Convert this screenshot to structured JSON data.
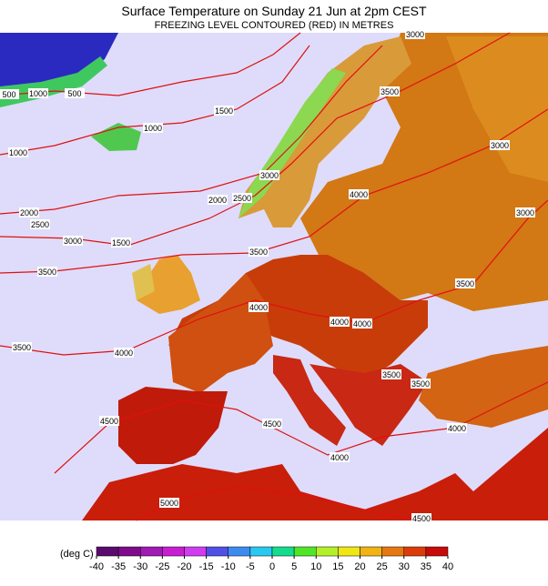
{
  "header": {
    "title": "Surface Temperature on Sunday 21 Jun at 2pm CEST",
    "subtitle": "FREEZING LEVEL CONTOURED (RED) IN METRES"
  },
  "contour_labels": [
    "500",
    "1000",
    "500",
    "1500",
    "1000",
    "1000",
    "2000",
    "2500",
    "3000",
    "1500",
    "2000",
    "2500",
    "3000",
    "3000",
    "3500",
    "3000",
    "3000",
    "4000",
    "3500",
    "3500",
    "4000",
    "4000",
    "4000",
    "3500",
    "3500",
    "4000",
    "3500",
    "3500",
    "4500",
    "4500",
    "4000",
    "4000",
    "5000",
    "4500"
  ],
  "legend": {
    "unit": "(deg C)",
    "ticks": [
      -40,
      -35,
      -30,
      -25,
      -20,
      -15,
      -10,
      -5,
      0,
      5,
      10,
      15,
      20,
      25,
      30,
      35,
      40
    ],
    "colors": [
      "#5a0a6e",
      "#800a8c",
      "#a01ab4",
      "#c81ed2",
      "#d23cf0",
      "#5050e6",
      "#3c8cf0",
      "#28c8f0",
      "#14dc8c",
      "#50e628",
      "#b4f028",
      "#f0e614",
      "#f0b414",
      "#e67814",
      "#dc3c0a",
      "#c80a0a"
    ]
  }
}
